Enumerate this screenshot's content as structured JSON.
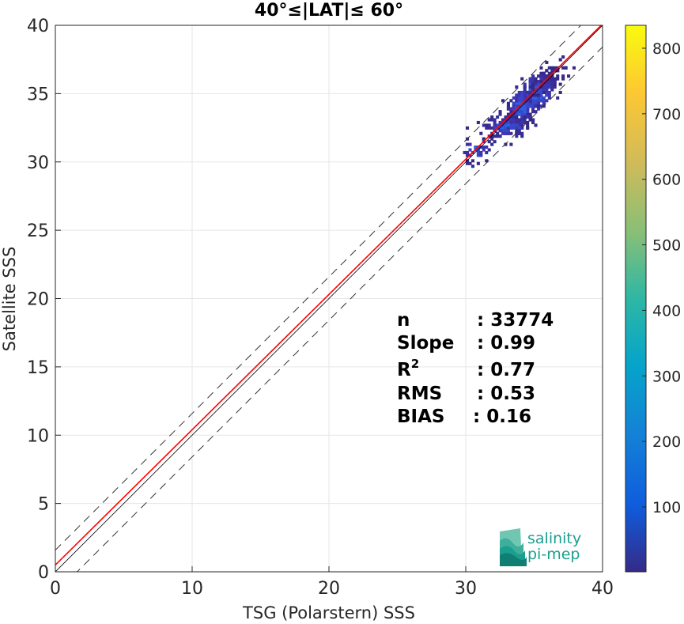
{
  "chart_data": {
    "type": "heatmap",
    "title": "40°≤|LAT|≤ 60°",
    "xlabel": "TSG (Polarstern) SSS",
    "ylabel": "Satellite SSS",
    "xlim": [
      0,
      40
    ],
    "ylim": [
      0,
      40
    ],
    "xticks": [
      "0",
      "10",
      "20",
      "30",
      "40"
    ],
    "yticks": [
      "0",
      "5",
      "10",
      "15",
      "20",
      "25",
      "30",
      "35",
      "40"
    ],
    "grid": true,
    "colorbar": {
      "range": [
        1,
        835
      ],
      "ticks": [
        "100",
        "200",
        "300",
        "400",
        "500",
        "600",
        "700",
        "800"
      ]
    },
    "reference_lines": {
      "identity": {
        "slope": 1,
        "intercept": 0,
        "color": "#000000"
      },
      "regression": {
        "slope": 0.99,
        "intercept": 0.5,
        "color": "#ff0000"
      },
      "upper_bound": {
        "slope": 1,
        "intercept": 1.59
      },
      "lower_bound": {
        "slope": 1,
        "intercept": -1.59
      }
    },
    "stats": [
      {
        "label": "n",
        "value": ": 33774"
      },
      {
        "label": "Slope",
        "value": ": 0.99"
      },
      {
        "label": "R",
        "sup": "2",
        "value": ": 0.77"
      },
      {
        "label": "RMS",
        "value": ": 0.53"
      },
      {
        "label": "BIAS",
        "value": ": 0.16"
      }
    ],
    "density_clusters": [
      {
        "x": 35.0,
        "y": 35.0,
        "sx": 0.9,
        "sy": 0.9,
        "rho": 0.75,
        "n": 420
      },
      {
        "x": 34.0,
        "y": 34.0,
        "sx": 0.6,
        "sy": 0.8,
        "rho": 0.6,
        "n": 200
      },
      {
        "x": 33.0,
        "y": 32.6,
        "sx": 0.9,
        "sy": 0.4,
        "rho": 0.2,
        "n": 110
      },
      {
        "x": 30.8,
        "y": 30.9,
        "sx": 0.5,
        "sy": 0.5,
        "rho": 0.2,
        "n": 40
      }
    ]
  },
  "logo": {
    "line1": "salinity",
    "line2": "pi-mep"
  }
}
